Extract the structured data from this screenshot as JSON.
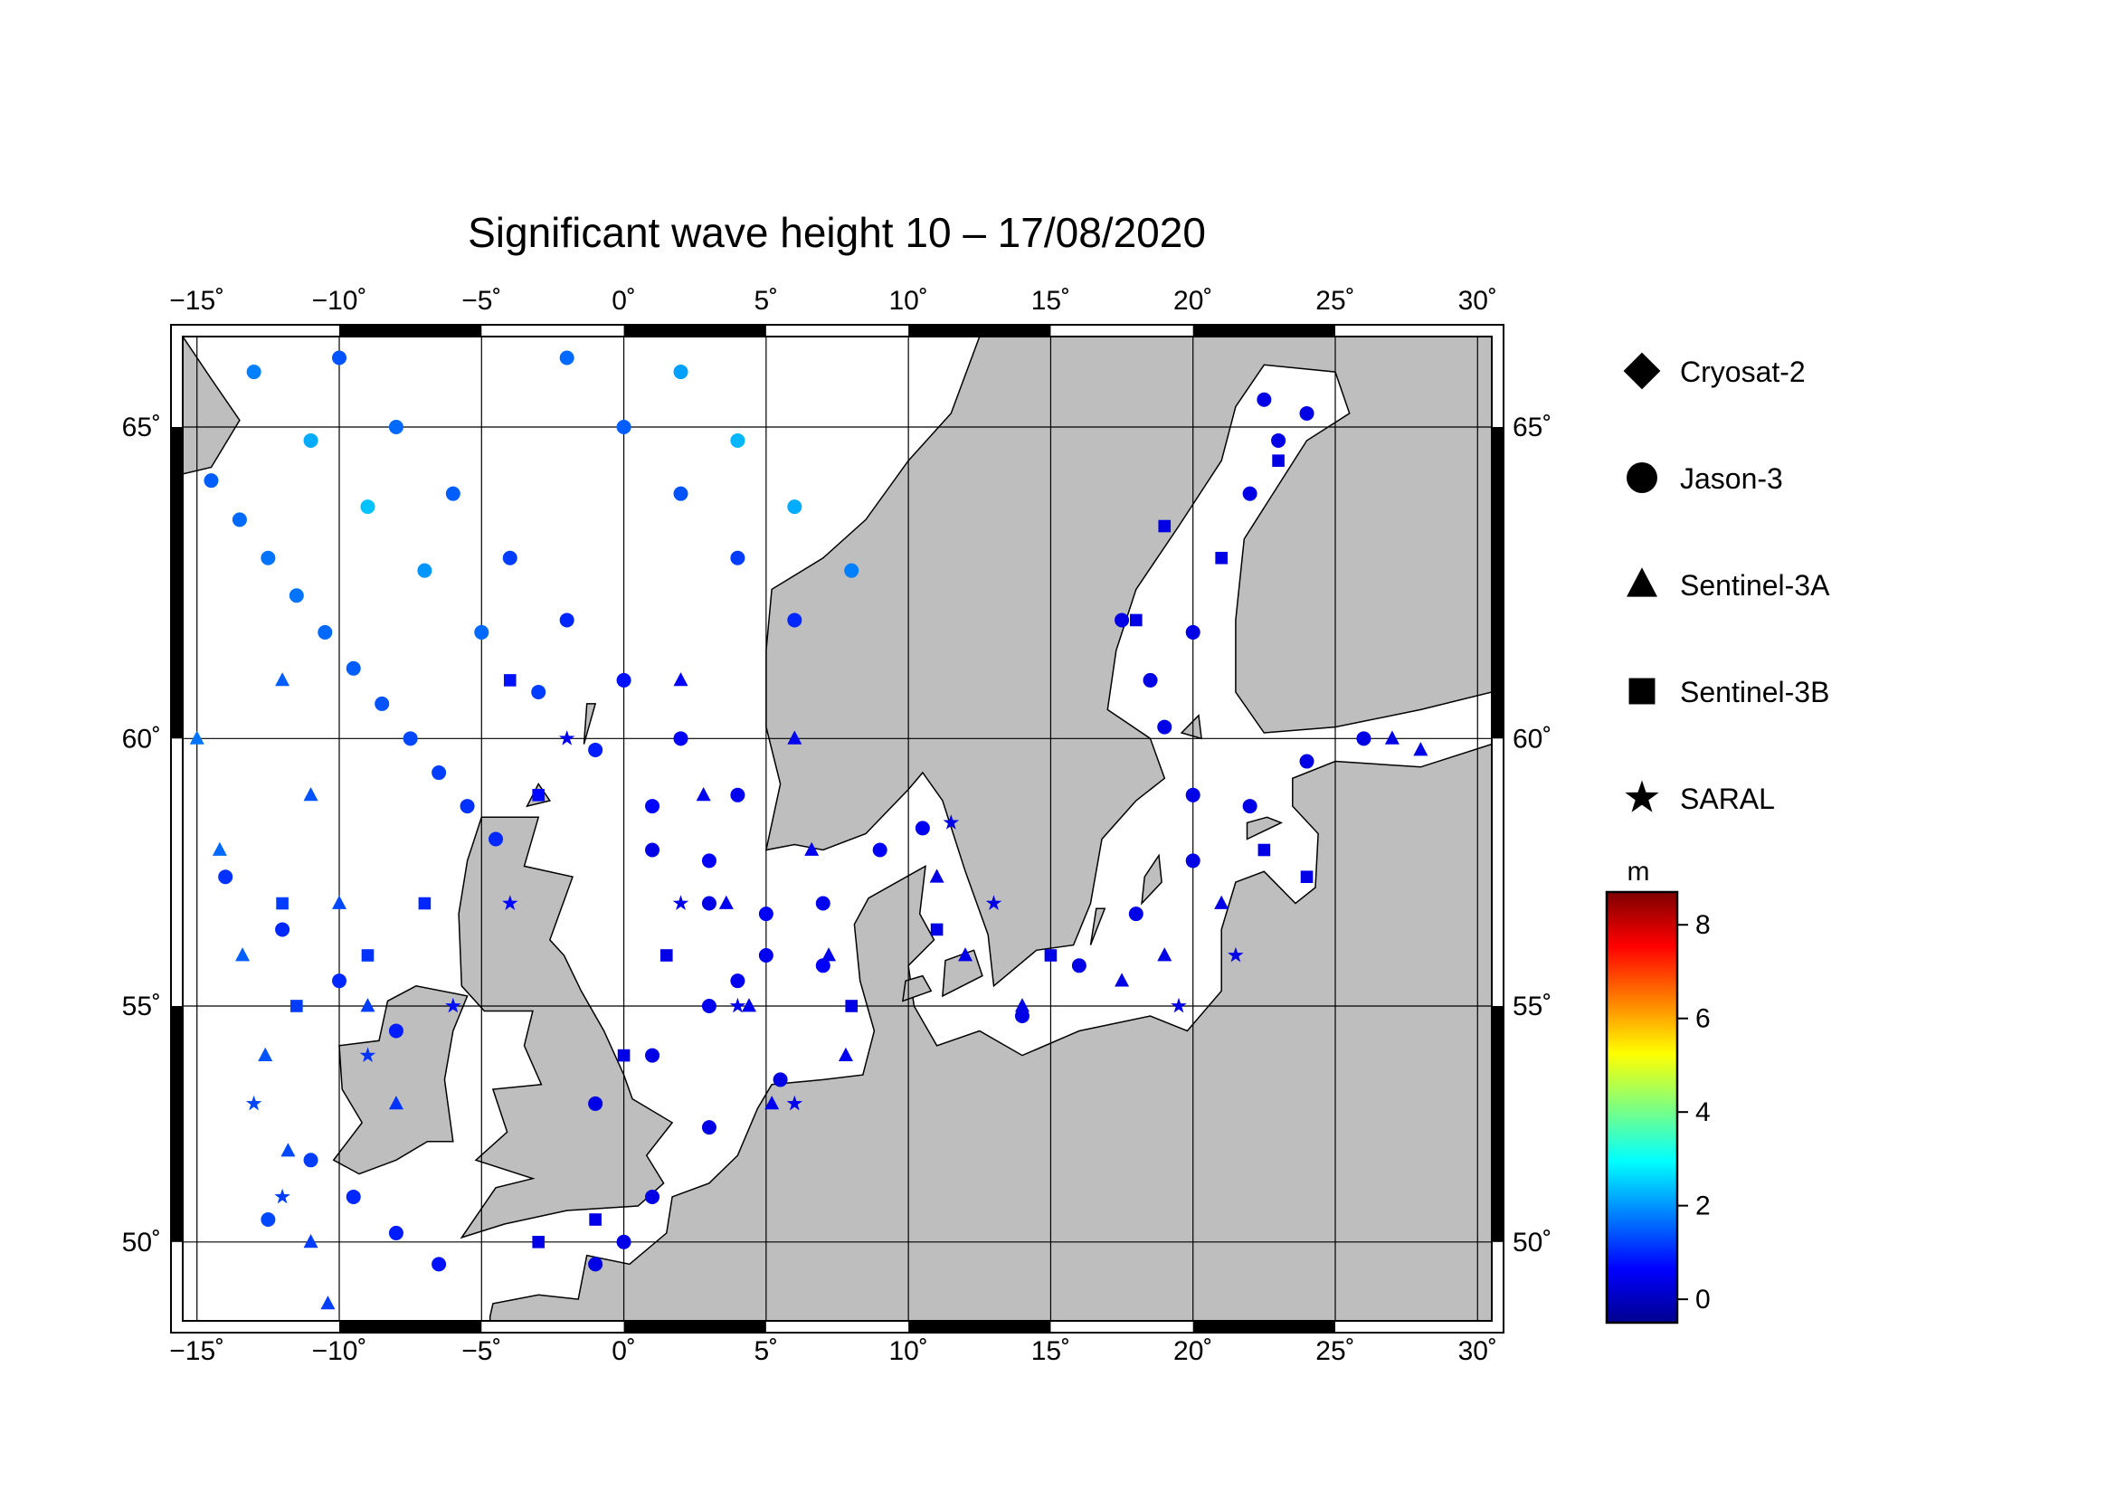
{
  "title": "Significant wave height 10 – 17/08/2020",
  "map": {
    "lon_range": [
      -15.5,
      30.5
    ],
    "lat_range": [
      48.2,
      66.3
    ],
    "lon_ticks": [
      "−15˚",
      "−10˚",
      "−5˚",
      "0˚",
      "5˚",
      "10˚",
      "15˚",
      "20˚",
      "25˚",
      "30˚"
    ],
    "lat_ticks": [
      "50˚",
      "55˚",
      "60˚",
      "65˚"
    ],
    "land_color": "#bebebe",
    "sea_color": "#ffffff",
    "graticule": true
  },
  "legend": {
    "items": [
      {
        "label": "Cryosat-2",
        "marker": "diamond"
      },
      {
        "label": "Jason-3",
        "marker": "circle"
      },
      {
        "label": "Sentinel-3A",
        "marker": "triangle"
      },
      {
        "label": "Sentinel-3B",
        "marker": "square"
      },
      {
        "label": "SARAL",
        "marker": "star"
      }
    ]
  },
  "colorbar": {
    "unit": "m",
    "range": [
      -0.5,
      8.7
    ],
    "ticks": [
      "0",
      "2",
      "4",
      "6",
      "8"
    ],
    "colormap": [
      "#00008f",
      "#0000ff",
      "#007fff",
      "#00ffff",
      "#7fff7f",
      "#ffff00",
      "#ff7f00",
      "#ff0000",
      "#7f0000"
    ]
  },
  "chart_data": {
    "type": "scatter",
    "title": "Significant wave height 10 – 17/08/2020",
    "xlabel": "",
    "ylabel": "",
    "xlim": [
      -15.5,
      30.5
    ],
    "ylim": [
      48.2,
      66.3
    ],
    "value_unit": "m",
    "series": [
      {
        "name": "Jason-3",
        "marker": "circle",
        "points": [
          [
            -14.5,
            64.2,
            1.5
          ],
          [
            -13.5,
            63.6,
            1.6
          ],
          [
            -12.5,
            63.0,
            1.7
          ],
          [
            -11.5,
            62.4,
            1.7
          ],
          [
            -10.5,
            61.8,
            1.6
          ],
          [
            -9.5,
            61.2,
            1.5
          ],
          [
            -8.5,
            60.6,
            1.4
          ],
          [
            -7.5,
            60.0,
            1.3
          ],
          [
            -6.5,
            59.4,
            1.2
          ],
          [
            -5.5,
            58.8,
            1.1
          ],
          [
            -4.5,
            58.2,
            1.0
          ],
          [
            -13.0,
            65.8,
            1.8
          ],
          [
            -11.0,
            64.8,
            2.2
          ],
          [
            -9.0,
            63.8,
            2.4
          ],
          [
            -7.0,
            62.8,
            2.0
          ],
          [
            -5.0,
            61.8,
            1.6
          ],
          [
            -3.0,
            60.8,
            1.2
          ],
          [
            -1.0,
            59.8,
            0.9
          ],
          [
            1.0,
            58.8,
            0.7
          ],
          [
            3.0,
            57.8,
            0.6
          ],
          [
            5.0,
            56.8,
            0.6
          ],
          [
            7.0,
            55.8,
            0.6
          ],
          [
            -10.0,
            66.0,
            1.4
          ],
          [
            -8.0,
            65.0,
            1.6
          ],
          [
            -6.0,
            64.0,
            1.5
          ],
          [
            -4.0,
            63.0,
            1.2
          ],
          [
            -2.0,
            62.0,
            1.0
          ],
          [
            0.0,
            61.0,
            0.8
          ],
          [
            2.0,
            60.0,
            0.6
          ],
          [
            4.0,
            59.0,
            0.5
          ],
          [
            -2.0,
            66.0,
            1.6
          ],
          [
            0.0,
            65.0,
            1.5
          ],
          [
            2.0,
            64.0,
            1.4
          ],
          [
            4.0,
            63.0,
            1.2
          ],
          [
            6.0,
            62.0,
            1.0
          ],
          [
            2.0,
            65.8,
            2.1
          ],
          [
            4.0,
            64.8,
            2.3
          ],
          [
            6.0,
            63.8,
            2.2
          ],
          [
            8.0,
            62.8,
            1.8
          ],
          [
            9.0,
            58.0,
            0.6
          ],
          [
            10.5,
            58.4,
            0.5
          ],
          [
            7.0,
            57.0,
            0.5
          ],
          [
            5.0,
            56.0,
            0.5
          ],
          [
            3.0,
            55.0,
            0.5
          ],
          [
            1.0,
            54.0,
            0.4
          ],
          [
            -1.0,
            53.0,
            0.4
          ],
          [
            1.0,
            58.0,
            0.4
          ],
          [
            3.0,
            57.0,
            0.4
          ],
          [
            4.0,
            55.5,
            0.5
          ],
          [
            5.5,
            53.5,
            0.4
          ],
          [
            3.0,
            52.5,
            0.4
          ],
          [
            1.0,
            51.0,
            0.4
          ],
          [
            0.0,
            50.0,
            0.4
          ],
          [
            -1.0,
            49.5,
            0.4
          ],
          [
            14.0,
            54.8,
            0.4
          ],
          [
            16.0,
            55.8,
            0.4
          ],
          [
            18.0,
            56.8,
            0.4
          ],
          [
            20.0,
            57.8,
            0.4
          ],
          [
            22.0,
            58.8,
            0.4
          ],
          [
            24.0,
            59.6,
            0.4
          ],
          [
            26.0,
            60.0,
            0.4
          ],
          [
            20.0,
            59.0,
            0.4
          ],
          [
            19.0,
            60.2,
            0.4
          ],
          [
            18.5,
            61.0,
            0.4
          ],
          [
            17.5,
            62.0,
            0.4
          ],
          [
            20.0,
            61.8,
            0.4
          ],
          [
            22.0,
            64.0,
            0.4
          ],
          [
            23.0,
            64.8,
            0.4
          ],
          [
            24.0,
            65.2,
            0.4
          ],
          [
            22.5,
            65.4,
            0.4
          ],
          [
            -14.0,
            57.5,
            1.1
          ],
          [
            -12.0,
            56.5,
            1.0
          ],
          [
            -10.0,
            55.5,
            1.0
          ],
          [
            -8.0,
            54.5,
            0.9
          ],
          [
            -12.5,
            50.5,
            1.3
          ],
          [
            -11.0,
            51.8,
            1.2
          ],
          [
            -9.5,
            51.0,
            1.0
          ],
          [
            -8.0,
            50.2,
            0.9
          ],
          [
            -6.5,
            49.5,
            0.8
          ]
        ]
      },
      {
        "name": "Sentinel-3A",
        "marker": "triangle",
        "points": [
          [
            -15.0,
            60.0,
            1.7
          ],
          [
            -14.2,
            58.0,
            1.6
          ],
          [
            -13.4,
            56.0,
            1.5
          ],
          [
            -12.6,
            54.0,
            1.4
          ],
          [
            -11.8,
            52.0,
            1.3
          ],
          [
            -11.0,
            50.0,
            1.2
          ],
          [
            -10.4,
            48.6,
            1.2
          ],
          [
            -12.0,
            61.0,
            1.5
          ],
          [
            -11.0,
            59.0,
            1.4
          ],
          [
            -10.0,
            57.0,
            1.3
          ],
          [
            -9.0,
            55.0,
            1.2
          ],
          [
            -8.0,
            53.0,
            1.1
          ],
          [
            2.0,
            61.0,
            0.6
          ],
          [
            2.8,
            59.0,
            0.5
          ],
          [
            3.6,
            57.0,
            0.5
          ],
          [
            4.4,
            55.0,
            0.5
          ],
          [
            5.2,
            53.0,
            0.5
          ],
          [
            6.0,
            60.0,
            0.5
          ],
          [
            6.6,
            58.0,
            0.5
          ],
          [
            7.2,
            56.0,
            0.5
          ],
          [
            7.8,
            54.0,
            0.5
          ],
          [
            11.0,
            57.5,
            0.4
          ],
          [
            12.0,
            56.0,
            0.4
          ],
          [
            14.0,
            55.0,
            0.4
          ],
          [
            17.5,
            55.5,
            0.4
          ],
          [
            19.0,
            56.0,
            0.4
          ],
          [
            21.0,
            57.0,
            0.4
          ],
          [
            27.0,
            60.0,
            0.4
          ],
          [
            28.0,
            59.8,
            0.4
          ]
        ]
      },
      {
        "name": "Sentinel-3B",
        "marker": "square",
        "points": [
          [
            -12.0,
            57.0,
            1.2
          ],
          [
            -11.5,
            55.0,
            1.2
          ],
          [
            -9.0,
            56.0,
            1.1
          ],
          [
            -7.0,
            57.0,
            1.0
          ],
          [
            -4.0,
            61.0,
            0.8
          ],
          [
            -3.0,
            59.0,
            0.7
          ],
          [
            0.0,
            54.0,
            0.4
          ],
          [
            1.5,
            56.0,
            0.4
          ],
          [
            8.0,
            55.0,
            0.4
          ],
          [
            11.0,
            56.5,
            0.4
          ],
          [
            15.0,
            56.0,
            0.4
          ],
          [
            18.0,
            62.0,
            0.4
          ],
          [
            19.0,
            63.5,
            0.4
          ],
          [
            21.0,
            63.0,
            0.4
          ],
          [
            23.0,
            64.5,
            0.4
          ],
          [
            24.0,
            57.5,
            0.4
          ],
          [
            22.5,
            58.0,
            0.4
          ],
          [
            -3.0,
            50.0,
            0.4
          ],
          [
            -1.0,
            50.5,
            0.4
          ]
        ]
      },
      {
        "name": "SARAL",
        "marker": "star",
        "points": [
          [
            -13.0,
            53.0,
            1.3
          ],
          [
            -12.0,
            51.0,
            1.2
          ],
          [
            -9.0,
            54.0,
            1.1
          ],
          [
            -6.0,
            55.0,
            0.8
          ],
          [
            -4.0,
            57.0,
            0.7
          ],
          [
            -2.0,
            60.0,
            0.6
          ],
          [
            2.0,
            57.0,
            0.5
          ],
          [
            4.0,
            55.0,
            0.5
          ],
          [
            6.0,
            53.0,
            0.5
          ],
          [
            11.5,
            58.5,
            0.4
          ],
          [
            13.0,
            57.0,
            0.4
          ],
          [
            19.5,
            55.0,
            0.4
          ],
          [
            21.5,
            56.0,
            0.4
          ]
        ]
      },
      {
        "name": "Cryosat-2",
        "marker": "diamond",
        "points": []
      }
    ]
  }
}
